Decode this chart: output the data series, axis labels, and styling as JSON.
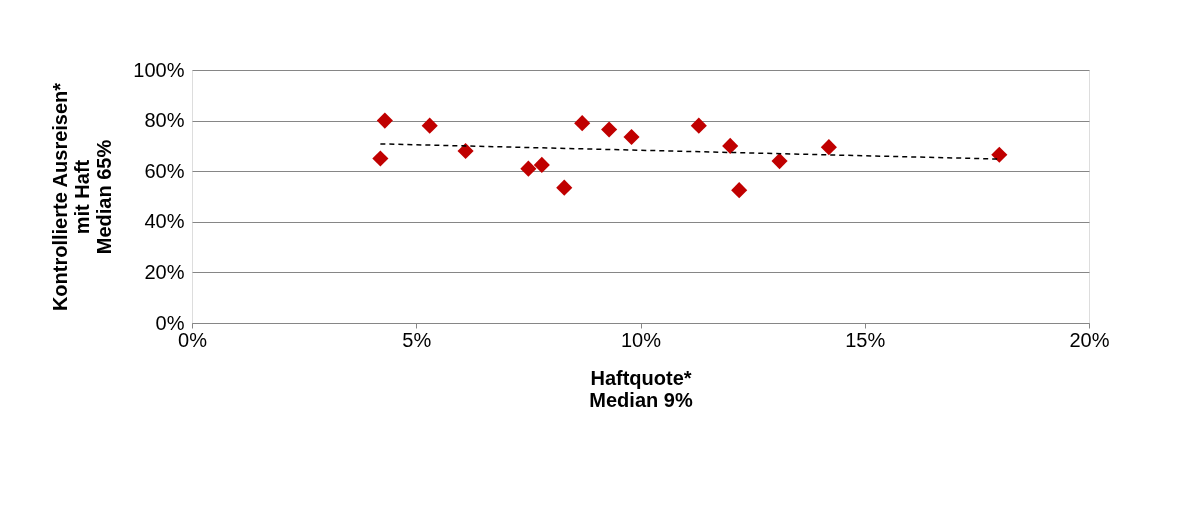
{
  "chart_data": {
    "type": "scatter",
    "xlabel": "Haftquote*\nMedian 9%",
    "ylabel": "Kontrollierte Ausreisen*\nmit Haft\nMedian 65%",
    "xlim": [
      0,
      20
    ],
    "ylim": [
      0,
      100
    ],
    "xticks": [
      {
        "value": 0,
        "label": "0%"
      },
      {
        "value": 5,
        "label": "5%"
      },
      {
        "value": 10,
        "label": "10%"
      },
      {
        "value": 15,
        "label": "15%"
      },
      {
        "value": 20,
        "label": "20%"
      }
    ],
    "yticks": [
      {
        "value": 0,
        "label": "0%"
      },
      {
        "value": 20,
        "label": "20%"
      },
      {
        "value": 40,
        "label": "40%"
      },
      {
        "value": 60,
        "label": "60%"
      },
      {
        "value": 80,
        "label": "80%"
      },
      {
        "value": 100,
        "label": "100%"
      }
    ],
    "grid": "y",
    "legend": false,
    "series": [
      {
        "marker": "diamond",
        "color": "#c00000",
        "x": [
          4.2,
          4.3,
          5.3,
          6.1,
          7.5,
          7.8,
          8.3,
          8.7,
          9.3,
          9.8,
          11.3,
          12.0,
          12.2,
          13.1,
          14.2,
          18.0
        ],
        "values": [
          65,
          80,
          78,
          68,
          61,
          62.5,
          53.5,
          79,
          76.5,
          73.5,
          78,
          70,
          52.5,
          64,
          69.5,
          66.5
        ]
      },
      {
        "type": "line",
        "line_style": "dashed",
        "marker": "none",
        "color": "#000000",
        "x": [
          4.2,
          18.0
        ],
        "values": [
          70.8,
          64.8
        ]
      }
    ]
  }
}
